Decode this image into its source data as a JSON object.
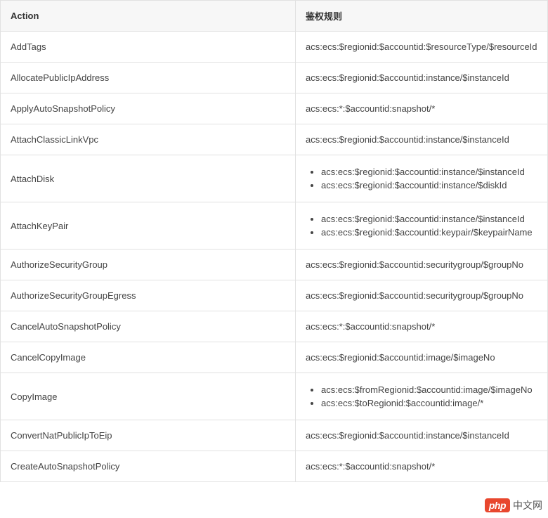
{
  "table": {
    "headers": {
      "action": "Action",
      "rule": "鉴权规则"
    },
    "rows": [
      {
        "action": "AddTags",
        "rules": [
          "acs:ecs:$regionid:$accountid:$resourceType/$resourceId"
        ]
      },
      {
        "action": "AllocatePublicIpAddress",
        "rules": [
          "acs:ecs:$regionid:$accountid:instance/$instanceId"
        ]
      },
      {
        "action": "ApplyAutoSnapshotPolicy",
        "rules": [
          "acs:ecs:*:$accountid:snapshot/*"
        ]
      },
      {
        "action": "AttachClassicLinkVpc",
        "rules": [
          "acs:ecs:$regionid:$accountid:instance/$instanceId"
        ]
      },
      {
        "action": "AttachDisk",
        "rules": [
          "acs:ecs:$regionid:$accountid:instance/$instanceId",
          "acs:ecs:$regionid:$accountid:instance/$diskId"
        ]
      },
      {
        "action": "AttachKeyPair",
        "rules": [
          "acs:ecs:$regionid:$accountid:instance/$instanceId",
          "acs:ecs:$regionid:$accountid:keypair/$keypairName"
        ]
      },
      {
        "action": "AuthorizeSecurityGroup",
        "rules": [
          "acs:ecs:$regionid:$accountid:securitygroup/$groupNo"
        ]
      },
      {
        "action": "AuthorizeSecurityGroupEgress",
        "rules": [
          "acs:ecs:$regionid:$accountid:securitygroup/$groupNo"
        ]
      },
      {
        "action": "CancelAutoSnapshotPolicy",
        "rules": [
          "acs:ecs:*:$accountid:snapshot/*"
        ]
      },
      {
        "action": "CancelCopyImage",
        "rules": [
          "acs:ecs:$regionid:$accountid:image/$imageNo"
        ]
      },
      {
        "action": "CopyImage",
        "rules": [
          "acs:ecs:$fromRegionid:$accountid:image/$imageNo",
          "acs:ecs:$toRegionid:$accountid:image/*"
        ]
      },
      {
        "action": "ConvertNatPublicIpToEip",
        "rules": [
          "acs:ecs:$regionid:$accountid:instance/$instanceId"
        ]
      },
      {
        "action": "CreateAutoSnapshotPolicy",
        "rules": [
          "acs:ecs:*:$accountid:snapshot/*"
        ]
      }
    ]
  },
  "watermark": {
    "badge": "php",
    "text": "中文网"
  },
  "style": {
    "header_bg": "#f7f7f7",
    "border_color": "#e1e1e1",
    "text_color": "#333",
    "watermark_badge_bg": "#e8472e",
    "watermark_badge_color": "#ffffff"
  }
}
